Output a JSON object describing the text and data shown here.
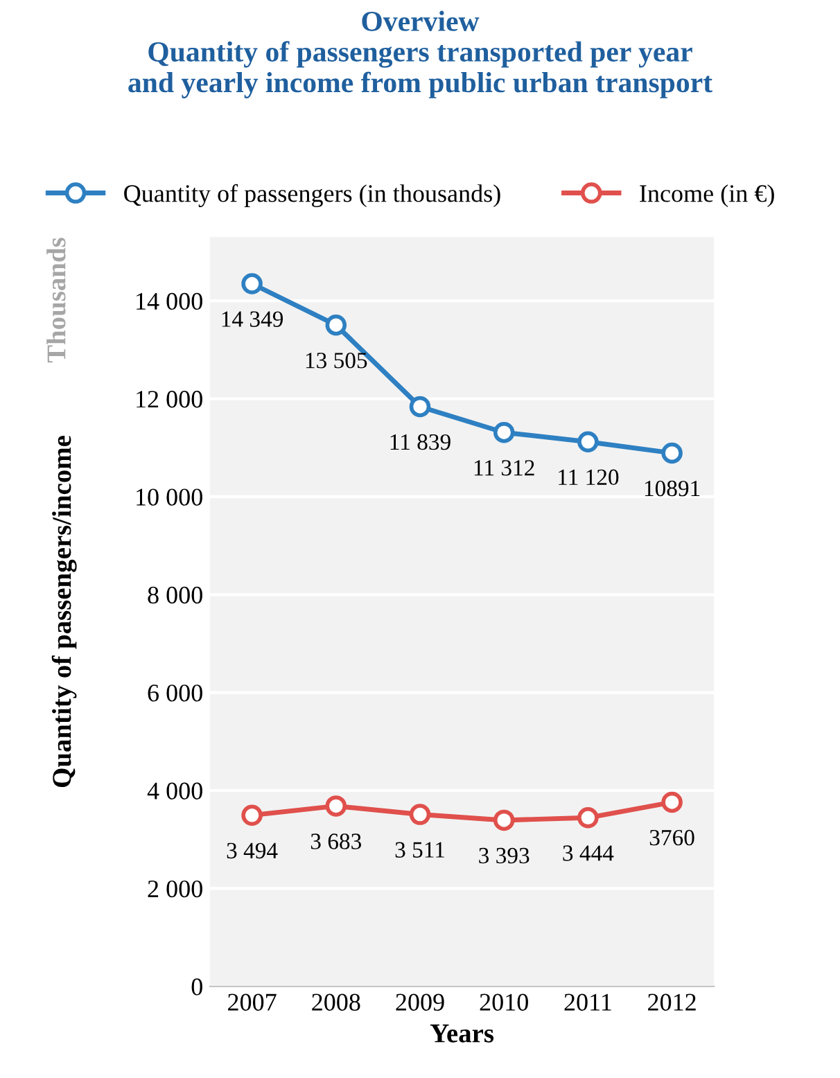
{
  "chart_data": {
    "type": "line",
    "title": "Overview\nQuantity of passengers transported per year\nand yearly income from public urban transport",
    "xlabel": "Years",
    "ylabel": "Quantity of passengers/income",
    "annotations": [
      "Thousands"
    ],
    "categories": [
      "2007",
      "2008",
      "2009",
      "2010",
      "2011",
      "2012"
    ],
    "series": [
      {
        "name": "Quantity of passengers (in thousands)",
        "color": "#2e80c2",
        "values": [
          14349,
          13505,
          11839,
          11312,
          11120,
          10891
        ],
        "value_labels": [
          "14 349",
          "13 505",
          "11 839",
          "11 312",
          "11 120",
          "10891"
        ]
      },
      {
        "name": "Income (in €)",
        "color": "#e0504c",
        "values": [
          3494,
          3683,
          3511,
          3393,
          3444,
          3760
        ],
        "value_labels": [
          "3 494",
          "3 683",
          "3 511",
          "3 393",
          "3 444",
          "3760"
        ]
      }
    ],
    "ylim": [
      0,
      15300
    ],
    "yticks": [
      0,
      {
        "value": 2000,
        "label": "2 000"
      },
      {
        "value": 4000,
        "label": "4 000"
      },
      {
        "value": 6000,
        "label": "6 000"
      },
      {
        "value": 8000,
        "label": "8 000"
      },
      {
        "value": 10000,
        "label": "10 000"
      },
      {
        "value": 12000,
        "label": "12 000"
      },
      {
        "value": 14000,
        "label": "14 000"
      }
    ],
    "grid": "y",
    "legend": "top",
    "marker": "circle",
    "line_style": "solid"
  }
}
